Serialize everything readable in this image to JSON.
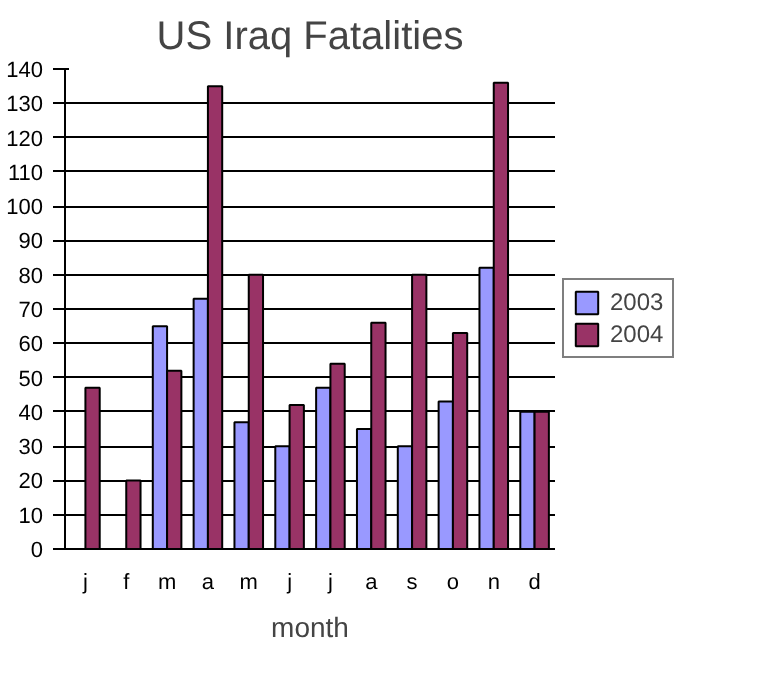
{
  "chart_data": {
    "type": "bar",
    "title": "US Iraq Fatalities",
    "xlabel": "month",
    "categories": [
      "j",
      "f",
      "m",
      "a",
      "m",
      "j",
      "j",
      "a",
      "s",
      "o",
      "n",
      "d"
    ],
    "series": [
      {
        "name": "2003",
        "color": "#9999ff",
        "values": [
          null,
          null,
          65,
          73,
          37,
          30,
          47,
          35,
          30,
          43,
          82,
          40
        ]
      },
      {
        "name": "2004",
        "color": "#993366",
        "values": [
          47,
          20,
          52,
          135,
          80,
          42,
          54,
          66,
          80,
          63,
          136,
          40
        ]
      }
    ],
    "ylim": [
      0,
      140
    ],
    "yticks": [
      0,
      10,
      20,
      30,
      40,
      50,
      60,
      70,
      80,
      90,
      100,
      110,
      120,
      130,
      140
    ],
    "grid": "y",
    "legend": "right"
  }
}
